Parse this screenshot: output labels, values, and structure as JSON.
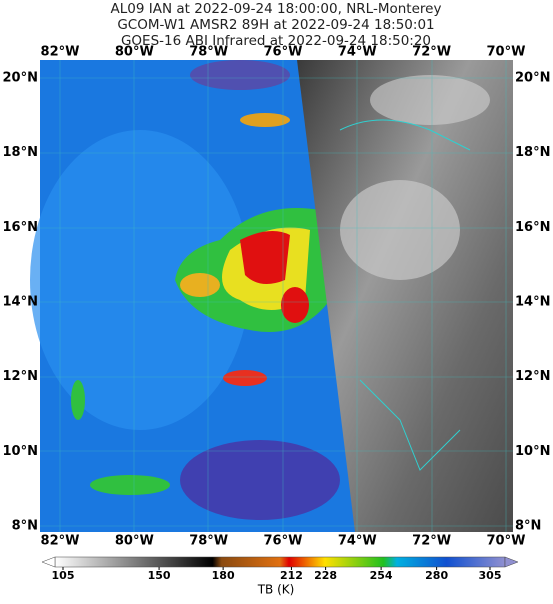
{
  "header": {
    "lines": [
      "AL09 IAN at 2022-09-24 18:00:00, NRL-Monterey",
      "GCOM-W1 AMSR2 89H at 2022-09-24 18:50:01",
      "GOES-16 ABI Infrared at 2022-09-24 18:50:20"
    ]
  },
  "map": {
    "longitude_labels": [
      "82°W",
      "80°W",
      "78°W",
      "76°W",
      "74°W",
      "72°W",
      "70°W"
    ],
    "latitude_labels": [
      "20°N",
      "18°N",
      "16°N",
      "14°N",
      "12°N",
      "10°N",
      "8°N"
    ]
  },
  "colorbar": {
    "ticks": [
      105,
      150,
      180,
      212,
      228,
      254,
      280,
      305
    ],
    "label": "TB (K)"
  }
}
